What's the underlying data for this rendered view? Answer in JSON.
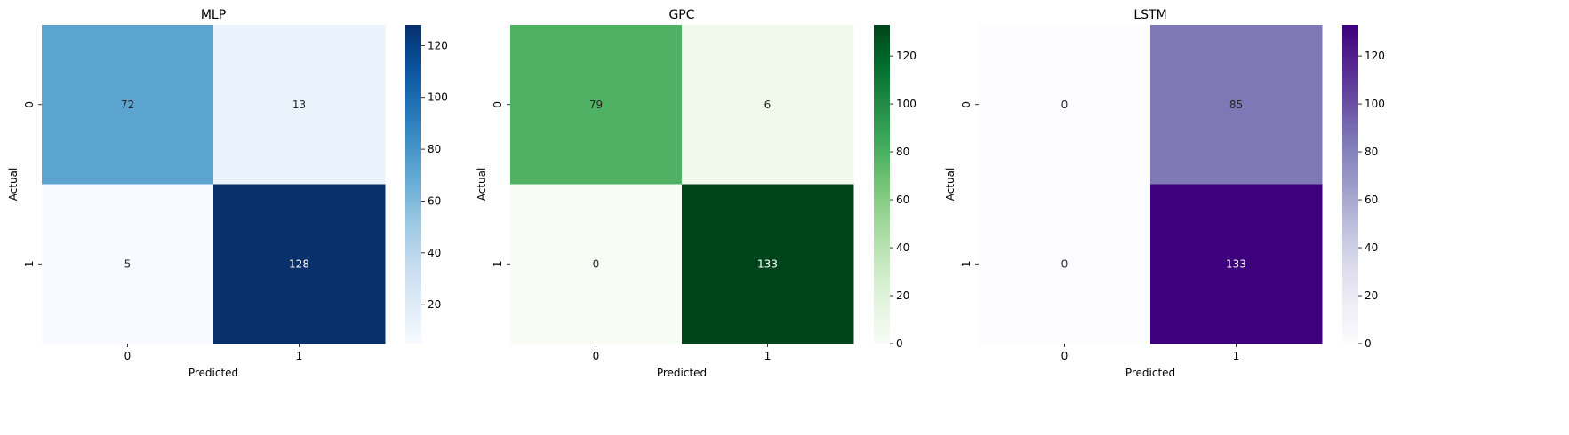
{
  "chart_data": [
    {
      "type": "heatmap",
      "title": "MLP",
      "xlabel": "Predicted",
      "ylabel": "Actual",
      "x_ticks": [
        "0",
        "1"
      ],
      "y_ticks": [
        "0",
        "1"
      ],
      "matrix": [
        [
          72,
          13
        ],
        [
          5,
          128
        ]
      ],
      "colormap": "Blues",
      "colorbar_ticks": [
        20,
        40,
        60,
        80,
        100,
        120
      ],
      "colorbar_range": [
        5,
        128
      ],
      "colors": {
        "low": "#f7fbff",
        "high": "#08306b"
      }
    },
    {
      "type": "heatmap",
      "title": "GPC",
      "xlabel": "Predicted",
      "ylabel": "Actual",
      "x_ticks": [
        "0",
        "1"
      ],
      "y_ticks": [
        "0",
        "1"
      ],
      "matrix": [
        [
          79,
          6
        ],
        [
          0,
          133
        ]
      ],
      "colormap": "Greens",
      "colorbar_ticks": [
        0,
        20,
        40,
        60,
        80,
        100,
        120
      ],
      "colorbar_range": [
        0,
        133
      ],
      "colors": {
        "low": "#f7fcf5",
        "high": "#00441b"
      }
    },
    {
      "type": "heatmap",
      "title": "LSTM",
      "xlabel": "Predicted",
      "ylabel": "Actual",
      "x_ticks": [
        "0",
        "1"
      ],
      "y_ticks": [
        "0",
        "1"
      ],
      "matrix": [
        [
          0,
          85
        ],
        [
          0,
          133
        ]
      ],
      "colormap": "Purples",
      "colorbar_ticks": [
        0,
        20,
        40,
        60,
        80,
        100,
        120
      ],
      "colorbar_range": [
        0,
        133
      ],
      "colors": {
        "low": "#fcfbfd",
        "high": "#3f007d"
      }
    }
  ]
}
